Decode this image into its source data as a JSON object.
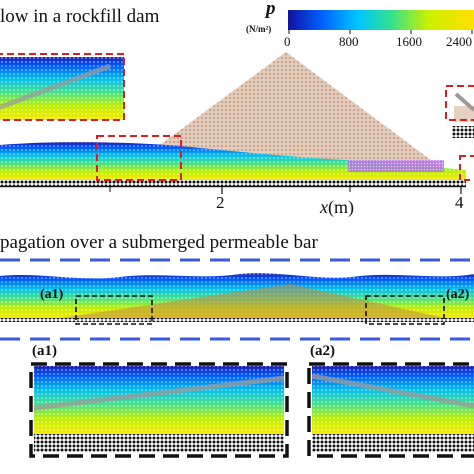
{
  "panel_a": {
    "title": "low in a rockfill dam",
    "axis_label": "x",
    "axis_unit": "(m)",
    "ticks": [
      "2",
      "4"
    ]
  },
  "colorbar": {
    "symbol": "p",
    "unit": "(N/m²)",
    "ticks": [
      "0",
      "800",
      "1600",
      "2400"
    ],
    "colors": [
      "#1010a0",
      "#0060ff",
      "#00c8ff",
      "#30e090",
      "#c8f000",
      "#ffe000"
    ]
  },
  "panel_b": {
    "title": "pagation over a submerged permeable bar",
    "label_left": "(a1)",
    "label_right": "(a2)"
  },
  "insets": {
    "label_left": "(a1)",
    "label_right": "(a2)"
  },
  "colors": {
    "highlight": "#d42020",
    "reference": "#3858e0",
    "rockfill": "#d8b8a0",
    "particle_grey": "#909090"
  }
}
